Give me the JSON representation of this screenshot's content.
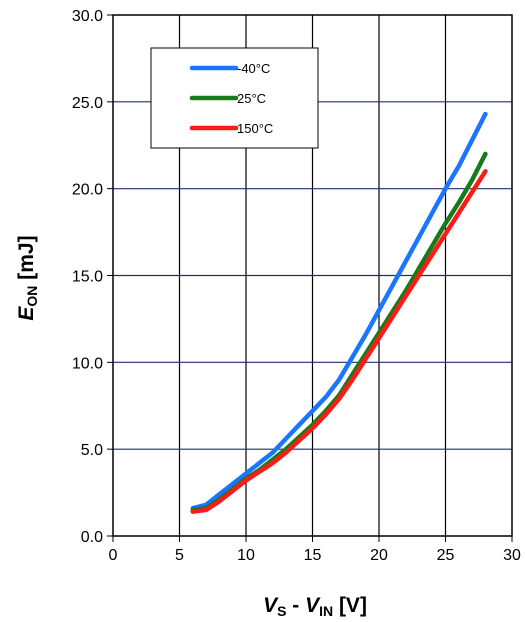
{
  "chart_data": {
    "type": "line",
    "xlim": [
      0,
      30
    ],
    "ylim": [
      0,
      30
    ],
    "x_ticks": [
      0,
      5,
      10,
      15,
      20,
      25,
      30
    ],
    "y_ticks": [
      "0.0",
      "5.0",
      "10.0",
      "15.0",
      "20.0",
      "25.0",
      "30.0"
    ],
    "x_tick_values": [
      0,
      5,
      10,
      15,
      20,
      25,
      30
    ],
    "y_tick_values": [
      0,
      5,
      10,
      15,
      20,
      25,
      30
    ],
    "xlabel": {
      "main1": "V",
      "sub1": "S",
      "mid": " - ",
      "main2": "V",
      "sub2": "IN",
      "unit": " [V]"
    },
    "ylabel": {
      "main": "E",
      "sub": "ON",
      "unit": " [mJ]"
    },
    "grid": true,
    "legend_position": "top-left",
    "series": [
      {
        "name": "-40°C",
        "color": "#1a75ff",
        "points": [
          [
            6,
            1.6
          ],
          [
            7,
            1.8
          ],
          [
            8,
            2.4
          ],
          [
            9,
            3.0
          ],
          [
            10,
            3.6
          ],
          [
            11,
            4.2
          ],
          [
            12,
            4.8
          ],
          [
            13,
            5.6
          ],
          [
            14,
            6.4
          ],
          [
            15,
            7.2
          ],
          [
            16,
            8.0
          ],
          [
            17,
            9.0
          ],
          [
            18,
            10.3
          ],
          [
            19,
            11.6
          ],
          [
            20,
            13.0
          ],
          [
            21,
            14.4
          ],
          [
            22,
            15.8
          ],
          [
            23,
            17.2
          ],
          [
            24,
            18.6
          ],
          [
            25,
            20.0
          ],
          [
            26,
            21.3
          ],
          [
            27,
            22.8
          ],
          [
            28,
            24.3
          ]
        ]
      },
      {
        "name": "25°C",
        "color": "#1a7a1a",
        "points": [
          [
            6,
            1.5
          ],
          [
            7,
            1.6
          ],
          [
            8,
            2.1
          ],
          [
            9,
            2.7
          ],
          [
            10,
            3.3
          ],
          [
            11,
            3.8
          ],
          [
            12,
            4.4
          ],
          [
            13,
            5.0
          ],
          [
            14,
            5.7
          ],
          [
            15,
            6.4
          ],
          [
            16,
            7.2
          ],
          [
            17,
            8.1
          ],
          [
            18,
            9.3
          ],
          [
            19,
            10.5
          ],
          [
            20,
            11.7
          ],
          [
            21,
            12.9
          ],
          [
            22,
            14.1
          ],
          [
            23,
            15.4
          ],
          [
            24,
            16.7
          ],
          [
            25,
            18.0
          ],
          [
            26,
            19.2
          ],
          [
            27,
            20.5
          ],
          [
            28,
            22.0
          ]
        ]
      },
      {
        "name": "150°C",
        "color": "#ff1a1a",
        "points": [
          [
            6,
            1.4
          ],
          [
            7,
            1.5
          ],
          [
            8,
            2.0
          ],
          [
            9,
            2.6
          ],
          [
            10,
            3.2
          ],
          [
            11,
            3.7
          ],
          [
            12,
            4.2
          ],
          [
            13,
            4.8
          ],
          [
            14,
            5.5
          ],
          [
            15,
            6.2
          ],
          [
            16,
            7.0
          ],
          [
            17,
            7.9
          ],
          [
            18,
            9.0
          ],
          [
            19,
            10.2
          ],
          [
            20,
            11.4
          ],
          [
            21,
            12.6
          ],
          [
            22,
            13.8
          ],
          [
            23,
            15.0
          ],
          [
            24,
            16.2
          ],
          [
            25,
            17.4
          ],
          [
            26,
            18.6
          ],
          [
            27,
            19.8
          ],
          [
            28,
            21.0
          ]
        ]
      }
    ]
  }
}
